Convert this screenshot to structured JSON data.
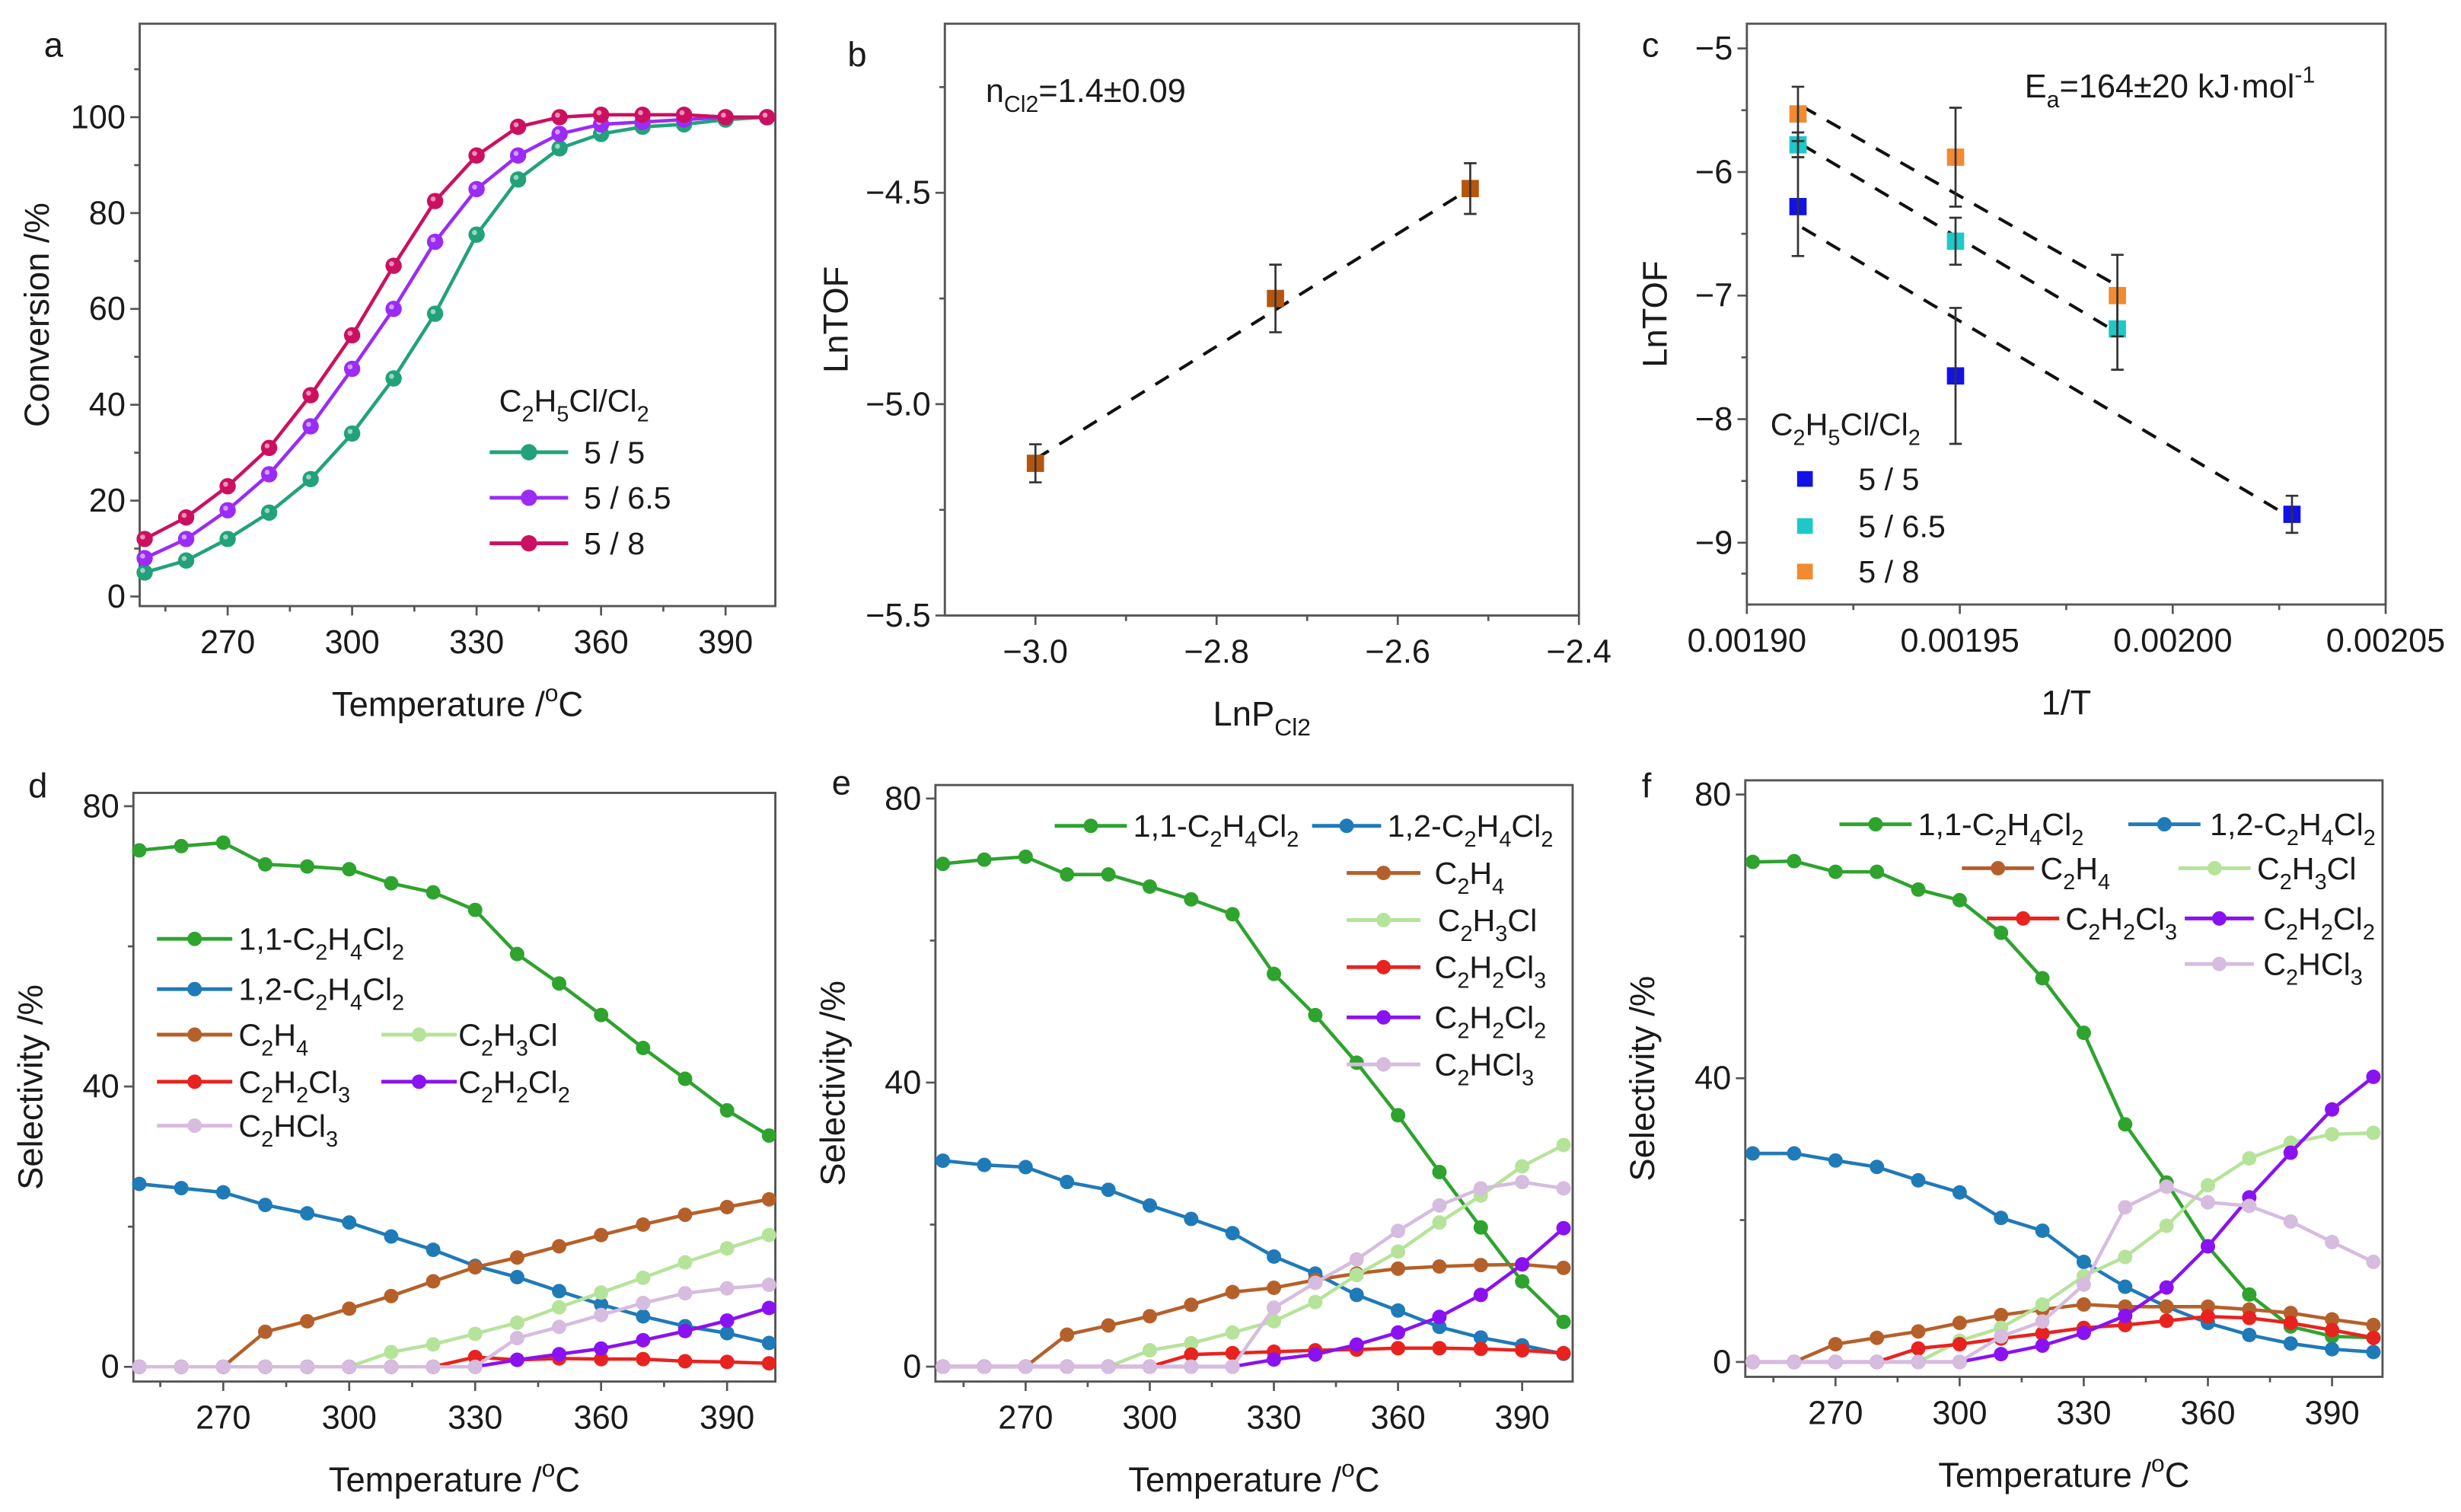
{
  "chart_data": [
    {
      "panel_label": "a",
      "type": "line",
      "xlabel": "Temperature /^{o}C",
      "ylabel": "Conversion /%",
      "xlim": [
        248.8,
        402
      ],
      "ylim": [
        -2,
        119.5
      ],
      "xticks": [
        270,
        300,
        330,
        360,
        390
      ],
      "xtick_labels": [
        "270",
        "300",
        "330",
        "360",
        "390"
      ],
      "yticks": [
        0,
        20,
        40,
        60,
        80,
        100
      ],
      "ytick_labels": [
        "0",
        "20",
        "40",
        "60",
        "80",
        "100"
      ],
      "legend_title": "C_{2}H_{5}Cl/Cl_{2}",
      "legend_position": "center-right",
      "grid": false,
      "x": [
        250,
        260,
        270,
        280,
        290,
        300,
        310,
        320,
        330,
        340,
        350,
        360,
        370,
        380,
        390,
        400
      ],
      "series": [
        {
          "name": "5 / 5",
          "color": "#22a27a",
          "values": [
            5,
            7.5,
            12,
            17.5,
            24.5,
            34,
            45.5,
            59,
            75.5,
            87,
            93.5,
            96.5,
            98,
            98.5,
            99.5,
            100
          ]
        },
        {
          "name": "5 / 6.5",
          "color": "#9a2cf5",
          "values": [
            8,
            12,
            18,
            25.5,
            35.5,
            47.5,
            60,
            74,
            85,
            92,
            96.5,
            98.5,
            99,
            99.5,
            100,
            100
          ]
        },
        {
          "name": "5 / 8",
          "color": "#cc1060",
          "values": [
            12,
            16.5,
            23,
            31,
            42,
            54.5,
            69,
            82.5,
            92,
            98,
            100,
            100.5,
            100.5,
            100.5,
            100,
            100
          ]
        }
      ]
    },
    {
      "panel_label": "b",
      "type": "scatter",
      "xlabel": "LnP_{Cl2}",
      "ylabel": "LnTOF",
      "xlim": [
        -3.1,
        -2.4
      ],
      "ylim": [
        -5.5,
        -4.1
      ],
      "xticks": [
        -3.0,
        -2.8,
        -2.6,
        -2.4
      ],
      "xtick_labels": [
        "−3.0",
        "−2.8",
        "−2.6",
        "−2.4"
      ],
      "yticks": [
        -5.5,
        -5.0,
        -4.5
      ],
      "ytick_labels": [
        "−5.5",
        "−5.0",
        "−4.5"
      ],
      "annotation": "n_{Cl2}=1.4±0.09",
      "grid": false,
      "series": [
        {
          "color": "#b5560f",
          "x": [
            -3.0,
            -2.735,
            -2.52
          ],
          "y": [
            -5.14,
            -4.75,
            -4.49
          ],
          "yerr": [
            0.045,
            0.08,
            0.06
          ],
          "fit": {
            "x": [
              -3.0,
              -2.52
            ],
            "y": [
              -5.13,
              -4.49
            ]
          }
        }
      ]
    },
    {
      "panel_label": "c",
      "type": "scatter",
      "xlabel": "1/T",
      "ylabel": "LnTOF",
      "xlim": [
        0.0019,
        0.00205
      ],
      "ylim": [
        -9.5,
        -4.8
      ],
      "xticks": [
        0.0019,
        0.00195,
        0.002,
        0.00205
      ],
      "xtick_labels": [
        "0.00190",
        "0.00195",
        "0.00200",
        "0.00205"
      ],
      "yticks": [
        -9,
        -8,
        -7,
        -6,
        -5
      ],
      "ytick_labels": [
        "−9",
        "−8",
        "−7",
        "−6",
        "−5"
      ],
      "annotation": "E_{a}=164±20 kJ·mol^{-1}",
      "legend_title": "C_{2}H_{5}Cl/Cl_{2}",
      "legend_position": "bottom-left",
      "grid": false,
      "series": [
        {
          "name": "5 / 5",
          "color": "#1212e8",
          "x": [
            0.001912,
            0.001949,
            0.002028
          ],
          "y": [
            -6.28,
            -7.65,
            -8.77
          ],
          "yerr": [
            0.4,
            0.55,
            0.15
          ],
          "fit": {
            "x": [
              0.001913,
              0.002025
            ],
            "y": [
              -6.45,
              -8.74
            ]
          }
        },
        {
          "name": "5 / 6.5",
          "color": "#1ec8c8",
          "x": [
            0.001912,
            0.001949,
            0.001987
          ],
          "y": [
            -5.78,
            -6.56,
            -7.27
          ],
          "yerr": [
            0.1,
            0.19,
            0.33
          ],
          "fit": {
            "x": [
              0.001913,
              0.001987
            ],
            "y": [
              -5.78,
              -7.3
            ]
          }
        },
        {
          "name": "5 / 8",
          "color": "#f28a30",
          "x": [
            0.001912,
            0.001949,
            0.001987
          ],
          "y": [
            -5.53,
            -5.88,
            -7.0
          ],
          "yerr": [
            0.22,
            0.4,
            0.33
          ],
          "fit": {
            "x": [
              0.001913,
              0.001987
            ],
            "y": [
              -5.47,
              -6.92
            ]
          }
        }
      ]
    },
    {
      "panel_label": "d",
      "type": "line",
      "xlabel": "Temperature /^{o}C",
      "ylabel": "Selectivity /%",
      "xlim": [
        248.6,
        401.5
      ],
      "ylim": [
        -2.1,
        81.9
      ],
      "xticks": [
        270,
        300,
        330,
        360,
        390
      ],
      "xtick_labels": [
        "270",
        "300",
        "330",
        "360",
        "390"
      ],
      "yticks": [
        0,
        40,
        80
      ],
      "ytick_labels": [
        "0",
        "40",
        "80"
      ],
      "legend_position": "center-left",
      "grid": false,
      "x": [
        250,
        260,
        270,
        280,
        290,
        300,
        310,
        320,
        330,
        340,
        350,
        360,
        370,
        380,
        390,
        400
      ],
      "series": [
        {
          "name": "1,1-C_{2}H_{4}Cl_{2}",
          "color": "#2ea32e",
          "values": [
            73.7,
            74.3,
            74.8,
            71.7,
            71.4,
            71.0,
            69.0,
            67.7,
            65.2,
            58.9,
            54.7,
            50.2,
            45.5,
            41.1,
            36.6,
            33.0
          ]
        },
        {
          "name": "1,2-C_{2}H_{4}Cl_{2}",
          "color": "#1f7ab8",
          "values": [
            26.1,
            25.5,
            24.9,
            23.1,
            21.9,
            20.6,
            18.6,
            16.7,
            14.4,
            12.8,
            10.8,
            8.9,
            7.2,
            5.8,
            4.8,
            3.4
          ]
        },
        {
          "name": "C_{2}H_{4}",
          "color": "#b5602a",
          "values": [
            0,
            0,
            0,
            5.0,
            6.5,
            8.3,
            10.1,
            12.2,
            14.2,
            15.6,
            17.2,
            18.8,
            20.3,
            21.7,
            22.8,
            23.9
          ]
        },
        {
          "name": "C_{2}H_{3}Cl",
          "color": "#b6e39a",
          "values": [
            0,
            0,
            0,
            0,
            0,
            0,
            2.1,
            3.2,
            4.7,
            6.3,
            8.5,
            10.6,
            12.7,
            14.9,
            16.9,
            18.8
          ]
        },
        {
          "name": "C_{2}H_{2}Cl_{3}",
          "color": "#e8231f",
          "values": [
            0,
            0,
            0,
            0,
            0,
            0,
            0,
            0,
            1.4,
            1.0,
            1.2,
            1.1,
            1.1,
            0.8,
            0.7,
            0.5
          ]
        },
        {
          "name": "C_{2}H_{2}Cl_{2}",
          "color": "#8a12f0",
          "values": [
            0,
            0,
            0,
            0,
            0,
            0,
            0,
            0,
            0,
            1.0,
            1.8,
            2.6,
            3.8,
            5.1,
            6.6,
            8.4
          ]
        },
        {
          "name": "C_{2}HCl_{3}",
          "color": "#d6bcdf",
          "values": [
            0,
            0,
            0,
            0,
            0,
            0,
            0,
            0,
            0,
            4.1,
            5.7,
            7.4,
            9.1,
            10.5,
            11.2,
            11.7
          ]
        }
      ]
    },
    {
      "panel_label": "e",
      "type": "line",
      "xlabel": "Temperature /^{o}C",
      "ylabel": "Selectivity /%",
      "xlim": [
        248.2,
        402.2
      ],
      "ylim": [
        -2.1,
        81.9
      ],
      "xticks": [
        270,
        300,
        330,
        360,
        390
      ],
      "xtick_labels": [
        "270",
        "300",
        "330",
        "360",
        "390"
      ],
      "yticks": [
        0,
        40,
        80
      ],
      "ytick_labels": [
        "0",
        "40",
        "80"
      ],
      "legend_position": "top-right",
      "grid": false,
      "x": [
        250,
        260,
        270,
        280,
        290,
        300,
        310,
        320,
        330,
        340,
        350,
        360,
        370,
        380,
        390,
        400
      ],
      "series": [
        {
          "name": "1,1-C_{2}H_{4}Cl_{2}",
          "color": "#2ea32e",
          "values": [
            70.8,
            71.4,
            71.8,
            69.3,
            69.3,
            67.6,
            65.8,
            63.7,
            55.3,
            49.5,
            42.8,
            35.4,
            27.4,
            19.6,
            12.0,
            6.3
          ]
        },
        {
          "name": "1,2-C_{2}H_{4}Cl_{2}",
          "color": "#1f7ab8",
          "values": [
            29.0,
            28.4,
            28.1,
            26.0,
            24.9,
            22.7,
            20.8,
            18.8,
            15.5,
            13.1,
            10.1,
            7.9,
            5.6,
            4.1,
            3.0,
            1.8
          ]
        },
        {
          "name": "C_{2}H_{4}",
          "color": "#b5602a",
          "values": [
            0,
            0,
            0,
            4.5,
            5.8,
            7.1,
            8.7,
            10.5,
            11.1,
            12.2,
            13.1,
            13.8,
            14.1,
            14.3,
            14.4,
            13.9
          ]
        },
        {
          "name": "C_{2}H_{3}Cl",
          "color": "#b6e39a",
          "values": [
            0,
            0,
            0,
            0,
            0,
            2.3,
            3.3,
            4.8,
            6.4,
            9.1,
            12.9,
            16.2,
            20.3,
            24.1,
            28.2,
            31.2
          ]
        },
        {
          "name": "C_{2}H_{2}Cl_{3}",
          "color": "#e8231f",
          "values": [
            0,
            0,
            0,
            0,
            0,
            0,
            1.7,
            1.9,
            2.1,
            2.3,
            2.4,
            2.6,
            2.6,
            2.5,
            2.3,
            1.9
          ]
        },
        {
          "name": "C_{2}H_{2}Cl_{2}",
          "color": "#8a12f0",
          "values": [
            0,
            0,
            0,
            0,
            0,
            0,
            0,
            0,
            1.0,
            1.7,
            3.1,
            4.8,
            7.0,
            10.1,
            14.4,
            19.5
          ]
        },
        {
          "name": "C_{2}HCl_{3}",
          "color": "#d6bcdf",
          "values": [
            0,
            0,
            0,
            0,
            0,
            0,
            0,
            0,
            8.3,
            11.8,
            15.1,
            19.1,
            22.7,
            25.1,
            26.0,
            25.1
          ]
        }
      ]
    },
    {
      "panel_label": "f",
      "type": "line",
      "xlabel": "Temperature /^{o}C",
      "ylabel": "Selectivity /%",
      "xlim": [
        248.2,
        402.2
      ],
      "ylim": [
        -2.1,
        82.0
      ],
      "xticks": [
        270,
        300,
        330,
        360,
        390
      ],
      "xtick_labels": [
        "270",
        "300",
        "330",
        "360",
        "390"
      ],
      "yticks": [
        0,
        40,
        80
      ],
      "ytick_labels": [
        "0",
        "40",
        "80"
      ],
      "legend_position": "top-right",
      "grid": false,
      "x": [
        250,
        260,
        270,
        280,
        290,
        300,
        310,
        320,
        330,
        340,
        350,
        360,
        370,
        380,
        390,
        400
      ],
      "series": [
        {
          "name": "1,1-C_{2}H_{4}Cl_{2}",
          "color": "#2ea32e",
          "values": [
            70.5,
            70.6,
            69.1,
            69.1,
            66.6,
            65.1,
            60.5,
            54.1,
            46.4,
            33.5,
            25.3,
            16.3,
            9.5,
            5.0,
            3.6,
            3.4
          ]
        },
        {
          "name": "1,2-C_{2}H_{4}Cl_{2}",
          "color": "#1f7ab8",
          "values": [
            29.4,
            29.4,
            28.4,
            27.5,
            25.6,
            23.9,
            20.3,
            18.5,
            14.1,
            10.6,
            7.8,
            5.5,
            3.8,
            2.6,
            1.8,
            1.4
          ]
        },
        {
          "name": "C_{2}H_{4}",
          "color": "#b5602a",
          "values": [
            0,
            0,
            2.5,
            3.4,
            4.3,
            5.5,
            6.6,
            7.4,
            8.1,
            7.8,
            7.8,
            7.8,
            7.4,
            6.9,
            6.0,
            5.2
          ]
        },
        {
          "name": "C_{2}H_{3}Cl",
          "color": "#b6e39a",
          "values": [
            0,
            0,
            0,
            0,
            0,
            3.0,
            4.8,
            8.1,
            12.1,
            14.8,
            19.2,
            24.9,
            28.7,
            30.9,
            32.1,
            32.3
          ]
        },
        {
          "name": "C_{2}H_{2}Cl_{3}",
          "color": "#e8231f",
          "values": [
            0,
            0,
            0,
            0,
            1.9,
            2.5,
            3.3,
            4.0,
            4.8,
            5.2,
            5.8,
            6.4,
            6.2,
            5.5,
            4.5,
            3.4
          ]
        },
        {
          "name": "C_{2}H_{2}Cl_{2}",
          "color": "#8a12f0",
          "values": [
            0,
            0,
            0,
            0,
            0,
            0,
            1.1,
            2.3,
            4.1,
            6.5,
            10.5,
            16.3,
            23.2,
            29.5,
            35.6,
            40.2
          ]
        },
        {
          "name": "C_{2}HCl_{3}",
          "color": "#d6bcdf",
          "values": [
            0,
            0,
            0,
            0,
            0,
            0,
            3.6,
            5.7,
            10.9,
            21.8,
            24.7,
            22.5,
            22.0,
            19.8,
            16.9,
            14.1
          ]
        }
      ]
    }
  ]
}
